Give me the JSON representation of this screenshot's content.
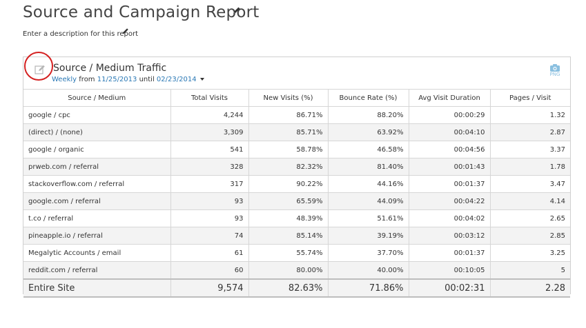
{
  "page": {
    "title": "Source and Campaign Report",
    "description": "Enter a description for this report"
  },
  "widget": {
    "title": "Source / Medium Traffic",
    "granularity": "Weekly",
    "from_word": "from",
    "start_date": "11/25/2013",
    "until_word": "until",
    "end_date": "02/23/2014",
    "export_label": "PNG"
  },
  "table": {
    "columns": [
      "Source / Medium",
      "Total Visits",
      "New Visits (%)",
      "Bounce Rate (%)",
      "Avg Visit Duration",
      "Pages / Visit"
    ],
    "rows": [
      [
        "google / cpc",
        "4,244",
        "86.71%",
        "88.20%",
        "00:00:29",
        "1.32"
      ],
      [
        "(direct) / (none)",
        "3,309",
        "85.71%",
        "63.92%",
        "00:04:10",
        "2.87"
      ],
      [
        "google / organic",
        "541",
        "58.78%",
        "46.58%",
        "00:04:56",
        "3.37"
      ],
      [
        "prweb.com / referral",
        "328",
        "82.32%",
        "81.40%",
        "00:01:43",
        "1.78"
      ],
      [
        "stackoverflow.com / referral",
        "317",
        "90.22%",
        "44.16%",
        "00:01:37",
        "3.47"
      ],
      [
        "google.com / referral",
        "93",
        "65.59%",
        "44.09%",
        "00:04:22",
        "4.14"
      ],
      [
        "t.co / referral",
        "93",
        "48.39%",
        "51.61%",
        "00:04:02",
        "2.65"
      ],
      [
        "pineapple.io / referral",
        "74",
        "85.14%",
        "39.19%",
        "00:03:12",
        "2.85"
      ],
      [
        "Megalytic Accounts / email",
        "61",
        "55.74%",
        "37.70%",
        "00:01:37",
        "3.25"
      ],
      [
        "reddit.com / referral",
        "60",
        "80.00%",
        "40.00%",
        "00:10:05",
        "5"
      ]
    ],
    "total": [
      "Entire Site",
      "9,574",
      "82.63%",
      "71.86%",
      "00:02:31",
      "2.28"
    ]
  },
  "colors": {
    "link": "#2a78b5",
    "highlight_circle": "#d42020",
    "export_icon": "#8bc0e0"
  },
  "icons": {
    "title_edit": "pencil-icon",
    "description_edit": "pencil-icon",
    "widget_edit": "edit-note-icon",
    "export": "camera-icon"
  }
}
